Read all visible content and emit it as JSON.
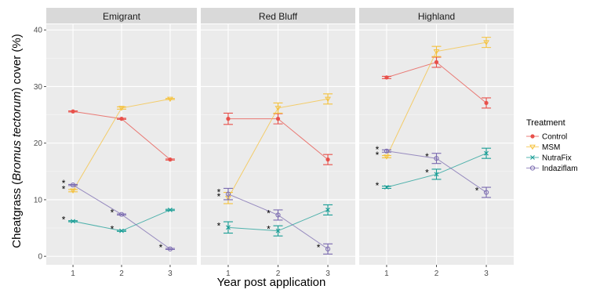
{
  "chart_data": {
    "type": "line",
    "xlabel": "Year post application",
    "ylabel_parts": [
      {
        "text": "Cheatgrass (",
        "italic": false
      },
      {
        "text": "Bromus tectorum",
        "italic": true
      },
      {
        "text": ") cover (%)",
        "italic": false
      }
    ],
    "x_ticks": [
      "1",
      "2",
      "3"
    ],
    "y_ticks": [
      "0",
      "10",
      "20",
      "30",
      "40"
    ],
    "ylim": [
      -1.5,
      41
    ],
    "xlim": [
      0.45,
      3.55
    ],
    "grid": true,
    "legend_position": "right",
    "legend_title": "Treatment",
    "series_styles": [
      {
        "name": "Control",
        "color": "#E8514B",
        "marker": "circle-filled"
      },
      {
        "name": "MSM",
        "color": "#F5C23E",
        "marker": "triangle-down"
      },
      {
        "name": "NutraFix",
        "color": "#1A9E96",
        "marker": "x"
      },
      {
        "name": "Indaziflam",
        "color": "#7B6BB0",
        "marker": "circle-open"
      }
    ],
    "panels": [
      {
        "title": "Emigrant",
        "series": [
          {
            "name": "Control",
            "values": [
              25.6,
              24.3,
              17.1
            ],
            "err": [
              0.1,
              0.1,
              0.1
            ]
          },
          {
            "name": "MSM",
            "values": [
              11.6,
              26.2,
              27.8
            ],
            "err": [
              0.2,
              0.2,
              0.1
            ]
          },
          {
            "name": "NutraFix",
            "values": [
              6.2,
              4.5,
              8.2
            ],
            "err": [
              0.1,
              0.1,
              0.1
            ]
          },
          {
            "name": "Indaziflam",
            "values": [
              12.6,
              7.4,
              1.3
            ],
            "err": [
              0.1,
              0.1,
              0.1
            ]
          }
        ],
        "stars": [
          {
            "x": 1,
            "y": 12.6
          },
          {
            "x": 1,
            "y": 11.6
          },
          {
            "x": 1,
            "y": 6.2
          },
          {
            "x": 2,
            "y": 7.4
          },
          {
            "x": 2,
            "y": 4.5
          },
          {
            "x": 3,
            "y": 1.3
          }
        ]
      },
      {
        "title": "Red Bluff",
        "series": [
          {
            "name": "Control",
            "values": [
              24.3,
              24.3,
              17.1
            ],
            "err": [
              1.0,
              0.9,
              0.9
            ]
          },
          {
            "name": "MSM",
            "values": [
              10.3,
              26.2,
              27.8
            ],
            "err": [
              1.0,
              0.9,
              0.9
            ]
          },
          {
            "name": "NutraFix",
            "values": [
              5.1,
              4.5,
              8.2
            ],
            "err": [
              1.0,
              0.9,
              0.9
            ]
          },
          {
            "name": "Indaziflam",
            "values": [
              11.0,
              7.3,
              1.3
            ],
            "err": [
              1.0,
              0.9,
              0.9
            ]
          }
        ],
        "stars": [
          {
            "x": 1,
            "y": 11.0
          },
          {
            "x": 1,
            "y": 10.3
          },
          {
            "x": 1,
            "y": 5.1
          },
          {
            "x": 2,
            "y": 7.3
          },
          {
            "x": 2,
            "y": 4.5
          },
          {
            "x": 3,
            "y": 1.3
          }
        ]
      },
      {
        "title": "Highland",
        "series": [
          {
            "name": "Control",
            "values": [
              31.6,
              34.3,
              27.1
            ],
            "err": [
              0.2,
              0.9,
              0.9
            ]
          },
          {
            "name": "MSM",
            "values": [
              17.6,
              36.2,
              37.8
            ],
            "err": [
              0.2,
              0.9,
              0.9
            ]
          },
          {
            "name": "NutraFix",
            "values": [
              12.2,
              14.5,
              18.2
            ],
            "err": [
              0.2,
              0.9,
              0.9
            ]
          },
          {
            "name": "Indaziflam",
            "values": [
              18.6,
              17.3,
              11.3
            ],
            "err": [
              0.2,
              0.9,
              0.9
            ]
          }
        ],
        "stars": [
          {
            "x": 1,
            "y": 18.6
          },
          {
            "x": 1,
            "y": 17.6
          },
          {
            "x": 1,
            "y": 12.2
          },
          {
            "x": 2,
            "y": 17.3
          },
          {
            "x": 2,
            "y": 14.5
          },
          {
            "x": 3,
            "y": 11.3
          }
        ]
      }
    ]
  }
}
